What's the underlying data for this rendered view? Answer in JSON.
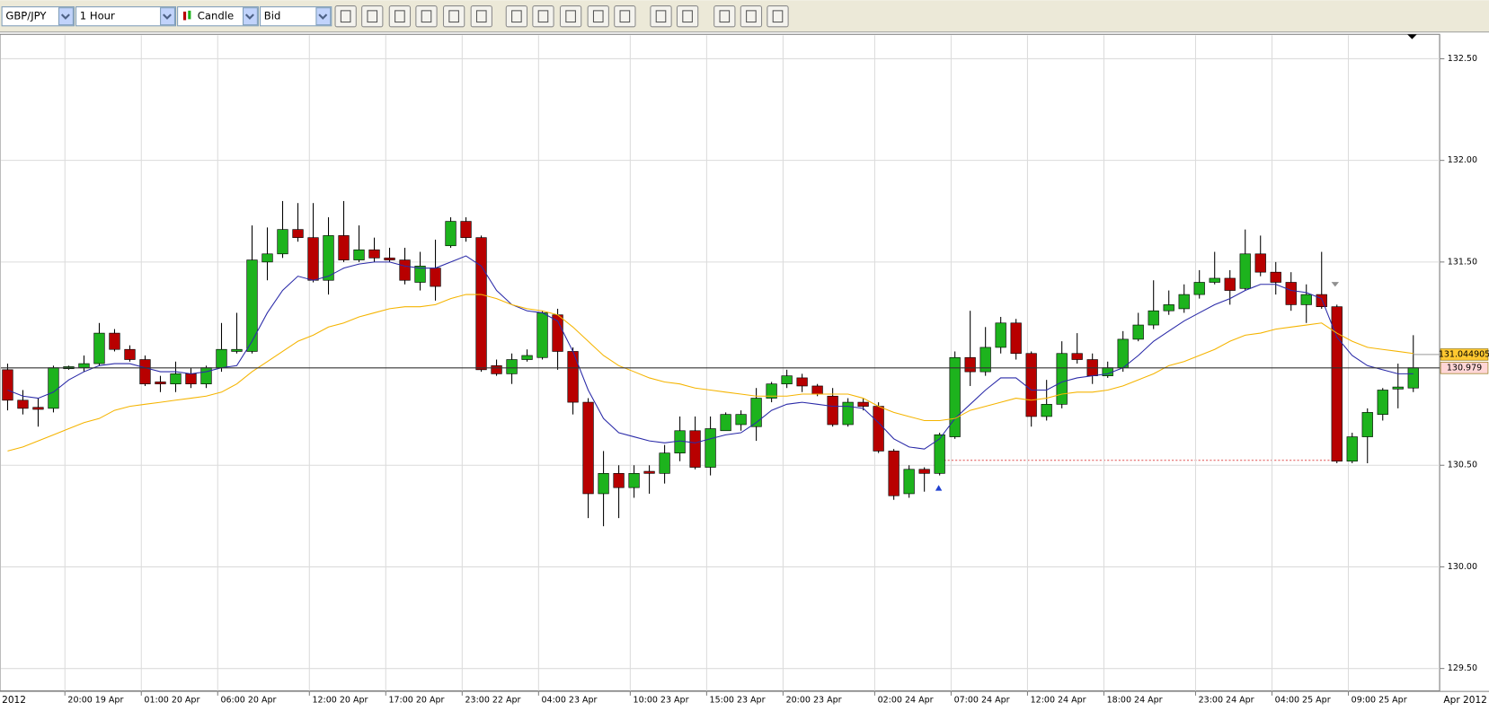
{
  "toolbar": {
    "symbol": "GBP/JPY",
    "period": "1 Hour",
    "chart_style": "Candle",
    "price": "Bid"
  },
  "chart_data": {
    "type": "candlestick",
    "period_start_label": "2012",
    "period_end_label": "Apr 2012",
    "categories": [
      null,
      null,
      null,
      null,
      "20:00 19 Apr",
      null,
      null,
      null,
      null,
      "01:00 20 Apr",
      null,
      null,
      null,
      null,
      "06:00 20 Apr",
      null,
      null,
      null,
      null,
      null,
      "12:00 20 Apr",
      null,
      null,
      null,
      null,
      "17:00 20 Apr",
      null,
      null,
      null,
      null,
      "23:00 22 Apr",
      null,
      null,
      null,
      null,
      "04:00 23 Apr",
      null,
      null,
      null,
      null,
      null,
      "10:00 23 Apr",
      null,
      null,
      null,
      null,
      "15:00 23 Apr",
      null,
      null,
      null,
      null,
      "20:00 23 Apr",
      null,
      null,
      null,
      null,
      null,
      "02:00 24 Apr",
      null,
      null,
      null,
      null,
      "07:00 24 Apr",
      null,
      null,
      null,
      null,
      "12:00 24 Apr",
      null,
      null,
      null,
      null,
      "18:00 24 Apr",
      null,
      null,
      null,
      null,
      null,
      "23:00 24 Apr",
      null,
      null,
      null,
      null,
      "04:00 25 Apr",
      null,
      null,
      null,
      null,
      "09:00 25 Apr",
      null,
      null,
      null,
      null
    ],
    "open": [
      130.97,
      130.82,
      130.785,
      130.78,
      130.975,
      130.98,
      131.0,
      131.15,
      131.07,
      131.02,
      130.91,
      130.9,
      130.95,
      130.9,
      130.98,
      131.06,
      131.06,
      131.5,
      131.54,
      131.66,
      131.62,
      131.41,
      131.63,
      131.51,
      131.56,
      131.52,
      131.51,
      131.4,
      131.47,
      131.58,
      131.7,
      131.62,
      130.99,
      130.95,
      131.02,
      131.03,
      131.24,
      131.06,
      130.81,
      130.36,
      130.46,
      130.39,
      130.47,
      130.46,
      130.56,
      130.67,
      130.49,
      130.67,
      130.7,
      130.69,
      130.83,
      130.9,
      130.93,
      130.89,
      130.84,
      130.7,
      130.81,
      130.79,
      130.57,
      130.36,
      130.48,
      130.46,
      130.64,
      131.03,
      130.96,
      131.08,
      131.2,
      131.05,
      130.74,
      130.8,
      131.05,
      131.02,
      130.94,
      130.98,
      131.12,
      131.19,
      131.26,
      131.27,
      131.34,
      131.4,
      131.42,
      131.37,
      131.54,
      131.45,
      131.4,
      131.29,
      131.34,
      131.28,
      130.52,
      130.64,
      130.75,
      130.875,
      130.88
    ],
    "high": [
      131.0,
      130.87,
      130.83,
      130.99,
      130.99,
      131.04,
      131.2,
      131.17,
      131.09,
      131.04,
      130.94,
      131.01,
      130.98,
      130.99,
      131.2,
      131.25,
      131.68,
      131.67,
      131.8,
      131.79,
      131.79,
      131.72,
      131.8,
      131.68,
      131.62,
      131.57,
      131.57,
      131.55,
      131.61,
      131.72,
      131.72,
      131.63,
      131.02,
      131.05,
      131.07,
      131.26,
      131.27,
      131.08,
      130.83,
      130.57,
      130.5,
      130.5,
      130.5,
      130.6,
      130.74,
      130.74,
      130.74,
      130.76,
      130.77,
      130.88,
      130.91,
      130.97,
      130.95,
      130.9,
      130.88,
      130.83,
      130.83,
      130.81,
      130.58,
      130.5,
      130.49,
      130.66,
      131.06,
      131.26,
      131.18,
      131.23,
      131.22,
      131.06,
      130.92,
      131.11,
      131.15,
      131.05,
      131.01,
      131.16,
      131.25,
      131.41,
      131.36,
      131.39,
      131.46,
      131.55,
      131.46,
      131.66,
      131.63,
      131.5,
      131.45,
      131.39,
      131.55,
      131.29,
      130.66,
      130.78,
      130.88,
      131.0,
      131.14
    ],
    "low": [
      130.77,
      130.75,
      130.69,
      130.76,
      130.97,
      130.96,
      130.99,
      131.06,
      131.01,
      130.89,
      130.86,
      130.86,
      130.88,
      130.88,
      130.96,
      131.05,
      131.05,
      131.41,
      131.52,
      131.6,
      131.4,
      131.34,
      131.5,
      131.5,
      131.5,
      131.5,
      131.39,
      131.36,
      131.31,
      131.57,
      131.6,
      130.96,
      130.94,
      130.9,
      131.01,
      131.02,
      130.97,
      130.75,
      130.24,
      130.2,
      130.24,
      130.34,
      130.36,
      130.41,
      130.52,
      130.48,
      130.45,
      130.67,
      130.67,
      130.62,
      130.81,
      130.88,
      130.86,
      130.84,
      130.69,
      130.69,
      130.77,
      130.56,
      130.33,
      130.34,
      130.37,
      130.45,
      130.63,
      130.89,
      130.94,
      131.05,
      131.02,
      130.69,
      130.72,
      130.78,
      131.0,
      130.9,
      130.93,
      130.96,
      131.11,
      131.17,
      131.24,
      131.25,
      131.32,
      131.39,
      131.29,
      131.36,
      131.43,
      131.34,
      131.26,
      131.2,
      131.27,
      130.51,
      130.51,
      130.51,
      130.72,
      130.78,
      130.86
    ],
    "close": [
      130.82,
      130.78,
      130.775,
      130.98,
      130.985,
      131.0,
      131.15,
      131.07,
      131.02,
      130.9,
      130.9,
      130.95,
      130.9,
      130.98,
      131.07,
      131.07,
      131.51,
      131.54,
      131.66,
      131.62,
      131.41,
      131.63,
      131.51,
      131.56,
      131.52,
      131.51,
      131.41,
      131.48,
      131.38,
      131.7,
      131.62,
      130.97,
      130.95,
      131.02,
      131.04,
      131.25,
      131.06,
      130.81,
      130.36,
      130.46,
      130.39,
      130.46,
      130.46,
      130.56,
      130.67,
      130.49,
      130.68,
      130.75,
      130.75,
      130.83,
      130.9,
      130.94,
      130.89,
      130.85,
      130.7,
      130.81,
      130.79,
      130.57,
      130.35,
      130.48,
      130.46,
      130.65,
      131.03,
      130.96,
      131.08,
      131.2,
      131.05,
      130.74,
      130.8,
      131.05,
      131.02,
      130.94,
      130.98,
      131.12,
      131.19,
      131.26,
      131.29,
      131.34,
      131.4,
      131.42,
      131.36,
      131.54,
      131.45,
      131.4,
      131.29,
      131.34,
      131.28,
      130.52,
      130.64,
      130.76,
      130.87,
      130.885,
      130.98
    ],
    "up_color": "#1db31d",
    "down_color": "#b80000",
    "overlays": [
      {
        "color": "#2a2aa8",
        "values": [
          130.87,
          130.84,
          130.83,
          130.86,
          130.92,
          130.96,
          130.99,
          131.0,
          131.0,
          130.98,
          130.96,
          130.96,
          130.95,
          130.96,
          130.98,
          130.99,
          131.11,
          131.25,
          131.36,
          131.43,
          131.41,
          131.43,
          131.47,
          131.49,
          131.5,
          131.5,
          131.48,
          131.47,
          131.47,
          131.5,
          131.53,
          131.48,
          131.36,
          131.29,
          131.26,
          131.25,
          131.21,
          131.06,
          130.87,
          130.73,
          130.66,
          130.64,
          130.62,
          130.61,
          130.62,
          130.61,
          130.63,
          130.65,
          130.66,
          130.71,
          130.77,
          130.8,
          130.81,
          130.8,
          130.79,
          130.79,
          130.78,
          130.71,
          130.63,
          130.59,
          130.58,
          130.63,
          130.73,
          130.8,
          130.87,
          130.93,
          130.93,
          130.87,
          130.87,
          130.91,
          130.93,
          130.94,
          130.95,
          130.98,
          131.04,
          131.11,
          131.16,
          131.21,
          131.25,
          131.29,
          131.32,
          131.36,
          131.39,
          131.39,
          131.36,
          131.35,
          131.32,
          131.13,
          131.04,
          130.99,
          130.97,
          130.95,
          130.95
        ]
      },
      {
        "color": "#f5b400",
        "values": [
          130.57,
          130.59,
          130.62,
          130.65,
          130.68,
          130.71,
          130.73,
          130.77,
          130.79,
          130.8,
          130.81,
          130.82,
          130.83,
          130.84,
          130.86,
          130.9,
          130.96,
          131.01,
          131.06,
          131.11,
          131.14,
          131.18,
          131.2,
          131.23,
          131.25,
          131.27,
          131.28,
          131.28,
          131.29,
          131.32,
          131.34,
          131.34,
          131.32,
          131.29,
          131.27,
          131.26,
          131.24,
          131.18,
          131.11,
          131.04,
          130.99,
          130.96,
          130.93,
          130.91,
          130.9,
          130.88,
          130.87,
          130.86,
          130.85,
          130.84,
          130.84,
          130.84,
          130.85,
          130.85,
          130.85,
          130.85,
          130.83,
          130.79,
          130.76,
          130.74,
          130.72,
          130.72,
          130.73,
          130.77,
          130.79,
          130.81,
          130.83,
          130.82,
          130.83,
          130.85,
          130.86,
          130.86,
          130.87,
          130.89,
          130.92,
          130.95,
          130.99,
          131.01,
          131.04,
          131.07,
          131.11,
          131.14,
          131.15,
          131.17,
          131.18,
          131.19,
          131.2,
          131.15,
          131.11,
          131.08,
          131.07,
          131.06,
          131.05
        ]
      }
    ],
    "price_tags": [
      131.044905,
      130.979
    ],
    "price_tag_colors": [
      "#ffc830",
      "#ffd6d6"
    ],
    "ylim": [
      129.39,
      132.62
    ],
    "yticks": [
      {
        "value": 129.5,
        "label": "129.50"
      },
      {
        "value": 130,
        "label": "130.00"
      },
      {
        "value": 130.5,
        "label": "130.50"
      },
      {
        "value": 131.5,
        "label": "131.50"
      },
      {
        "value": 132,
        "label": "132.00"
      },
      {
        "value": 132.5,
        "label": "132.50"
      }
    ],
    "grid": true
  }
}
